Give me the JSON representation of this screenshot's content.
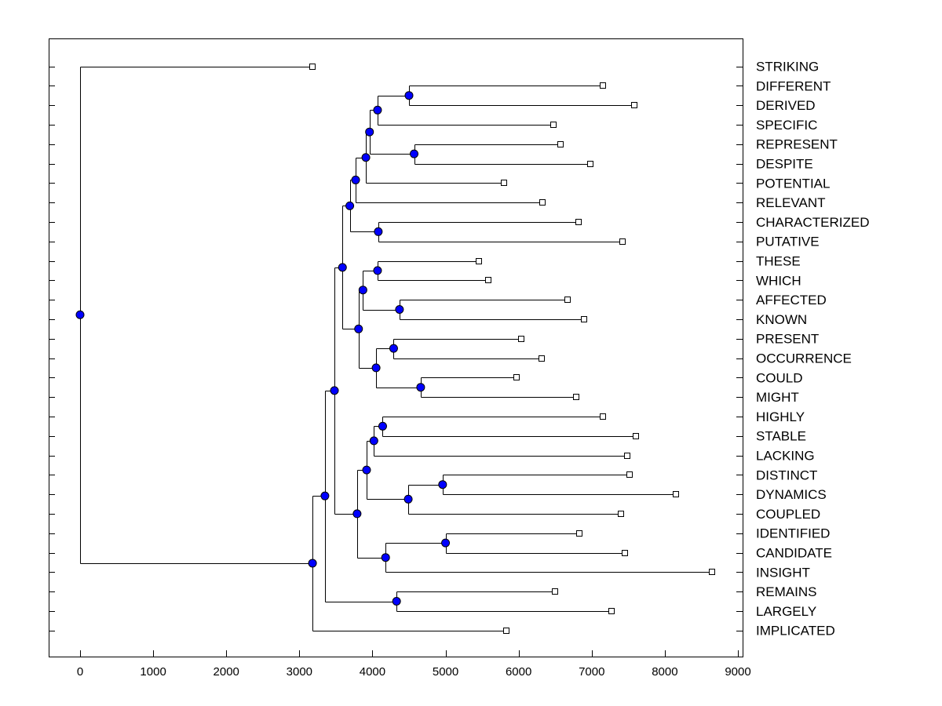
{
  "chart_data": {
    "type": "dendrogram",
    "title": "",
    "xlabel": "",
    "ylabel": "",
    "xlim": [
      -400,
      9100
    ],
    "x_ticks": [
      0,
      1000,
      2000,
      3000,
      4000,
      5000,
      6000,
      7000,
      8000,
      9000
    ],
    "x_tick_labels": [
      "0",
      "1000",
      "2000",
      "3000",
      "4000",
      "5000",
      "6000",
      "7000",
      "8000",
      "9000"
    ],
    "colors": {
      "node_fill": "#0000ff",
      "node_stroke": "#000000",
      "leaf_fill": "#ffffff",
      "line": "#000000"
    },
    "leaves": [
      {
        "label": "STRIKING",
        "value": 3180
      },
      {
        "label": "DIFFERENT",
        "value": 7150
      },
      {
        "label": "DERIVED",
        "value": 7580
      },
      {
        "label": "SPECIFIC",
        "value": 6480
      },
      {
        "label": "REPRESENT",
        "value": 6570
      },
      {
        "label": "DESPITE",
        "value": 6980
      },
      {
        "label": "POTENTIAL",
        "value": 5800
      },
      {
        "label": "RELEVANT",
        "value": 6330
      },
      {
        "label": "CHARACTERIZED",
        "value": 6820
      },
      {
        "label": "PUTATIVE",
        "value": 7420
      },
      {
        "label": "THESE",
        "value": 5460
      },
      {
        "label": "WHICH",
        "value": 5580
      },
      {
        "label": "AFFECTED",
        "value": 6670
      },
      {
        "label": "KNOWN",
        "value": 6900
      },
      {
        "label": "PRESENT",
        "value": 6040
      },
      {
        "label": "OCCURRENCE",
        "value": 6320
      },
      {
        "label": "COULD",
        "value": 5970
      },
      {
        "label": "MIGHT",
        "value": 6790
      },
      {
        "label": "HIGHLY",
        "value": 7150
      },
      {
        "label": "STABLE",
        "value": 7600
      },
      {
        "label": "LACKING",
        "value": 7490
      },
      {
        "label": "DISTINCT",
        "value": 7520
      },
      {
        "label": "DYNAMICS",
        "value": 8150
      },
      {
        "label": "COUPLED",
        "value": 7400
      },
      {
        "label": "IDENTIFIED",
        "value": 6830
      },
      {
        "label": "CANDIDATE",
        "value": 7450
      },
      {
        "label": "INSIGHT",
        "value": 8650
      },
      {
        "label": "REMAINS",
        "value": 6500
      },
      {
        "label": "LARGELY",
        "value": 7270
      },
      {
        "label": "IMPLICATED",
        "value": 5830
      }
    ],
    "merges": [
      {
        "id": "n1",
        "value": 4500,
        "children": [
          "DIFFERENT",
          "DERIVED"
        ]
      },
      {
        "id": "n2",
        "value": 4070,
        "children": [
          "n1",
          "SPECIFIC"
        ]
      },
      {
        "id": "n3",
        "value": 4570,
        "children": [
          "REPRESENT",
          "DESPITE"
        ]
      },
      {
        "id": "n4",
        "value": 3960,
        "children": [
          "n2",
          "n3"
        ]
      },
      {
        "id": "n5",
        "value": 3910,
        "children": [
          "n4",
          "POTENTIAL"
        ]
      },
      {
        "id": "n6",
        "value": 3770,
        "children": [
          "n5",
          "RELEVANT"
        ]
      },
      {
        "id": "n7",
        "value": 4080,
        "children": [
          "CHARACTERIZED",
          "PUTATIVE"
        ]
      },
      {
        "id": "n8",
        "value": 3690,
        "children": [
          "n6",
          "n7"
        ]
      },
      {
        "id": "n9",
        "value": 4070,
        "children": [
          "THESE",
          "WHICH"
        ]
      },
      {
        "id": "n10",
        "value": 4370,
        "children": [
          "AFFECTED",
          "KNOWN"
        ]
      },
      {
        "id": "n11",
        "value": 3870,
        "children": [
          "n9",
          "n10"
        ]
      },
      {
        "id": "n12",
        "value": 4290,
        "children": [
          "PRESENT",
          "OCCURRENCE"
        ]
      },
      {
        "id": "n13",
        "value": 4660,
        "children": [
          "COULD",
          "MIGHT"
        ]
      },
      {
        "id": "n14",
        "value": 4050,
        "children": [
          "n12",
          "n13"
        ]
      },
      {
        "id": "n15",
        "value": 3810,
        "children": [
          "n11",
          "n14"
        ]
      },
      {
        "id": "n16",
        "value": 3590,
        "children": [
          "n8",
          "n15"
        ]
      },
      {
        "id": "n17",
        "value": 4140,
        "children": [
          "HIGHLY",
          "STABLE"
        ]
      },
      {
        "id": "n18",
        "value": 4020,
        "children": [
          "n17",
          "LACKING"
        ]
      },
      {
        "id": "n19",
        "value": 4960,
        "children": [
          "DISTINCT",
          "DYNAMICS"
        ]
      },
      {
        "id": "n20",
        "value": 4490,
        "children": [
          "n19",
          "COUPLED"
        ]
      },
      {
        "id": "n21",
        "value": 3920,
        "children": [
          "n18",
          "n20"
        ]
      },
      {
        "id": "n22",
        "value": 5000,
        "children": [
          "IDENTIFIED",
          "CANDIDATE"
        ]
      },
      {
        "id": "n23",
        "value": 4180,
        "children": [
          "n22",
          "INSIGHT"
        ]
      },
      {
        "id": "n24",
        "value": 3790,
        "children": [
          "n21",
          "n23"
        ]
      },
      {
        "id": "n25",
        "value": 3480,
        "children": [
          "n16",
          "n24"
        ]
      },
      {
        "id": "n26",
        "value": 4330,
        "children": [
          "REMAINS",
          "LARGELY"
        ]
      },
      {
        "id": "n27",
        "value": 3350,
        "children": [
          "n25",
          "n26"
        ]
      },
      {
        "id": "n28",
        "value": 3180,
        "children": [
          "n27",
          "IMPLICATED"
        ]
      },
      {
        "id": "n29",
        "value": 0,
        "children": [
          "STRIKING",
          "n28"
        ]
      }
    ]
  }
}
